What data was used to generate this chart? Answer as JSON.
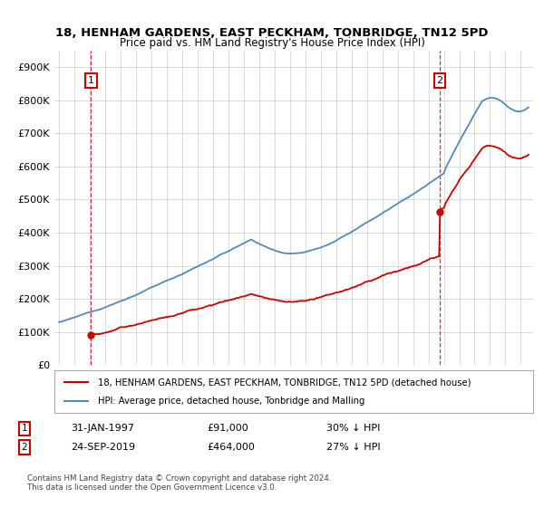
{
  "title": "18, HENHAM GARDENS, EAST PECKHAM, TONBRIDGE, TN12 5PD",
  "subtitle": "Price paid vs. HM Land Registry's House Price Index (HPI)",
  "ylim": [
    0,
    950000
  ],
  "yticks": [
    0,
    100000,
    200000,
    300000,
    400000,
    500000,
    600000,
    700000,
    800000,
    900000
  ],
  "ytick_labels": [
    "£0",
    "£100K",
    "£200K",
    "£300K",
    "£400K",
    "£500K",
    "£600K",
    "£700K",
    "£800K",
    "£900K"
  ],
  "sale1_year": 1997.08,
  "sale1_price": 91000,
  "sale1_date": "31-JAN-1997",
  "sale1_hpi_diff": "30% ↓ HPI",
  "sale2_year": 2019.73,
  "sale2_price": 464000,
  "sale2_date": "24-SEP-2019",
  "sale2_hpi_diff": "27% ↓ HPI",
  "legend_line1": "18, HENHAM GARDENS, EAST PECKHAM, TONBRIDGE, TN12 5PD (detached house)",
  "legend_line2": "HPI: Average price, detached house, Tonbridge and Malling",
  "footer": "Contains HM Land Registry data © Crown copyright and database right 2024.\nThis data is licensed under the Open Government Licence v3.0.",
  "price_color": "#cc0000",
  "hpi_color": "#5588bb",
  "background_color": "#ffffff",
  "grid_color": "#cccccc",
  "annotation_box_color": "#cc0000",
  "xlim_left": 1994.7,
  "xlim_right": 2025.8
}
